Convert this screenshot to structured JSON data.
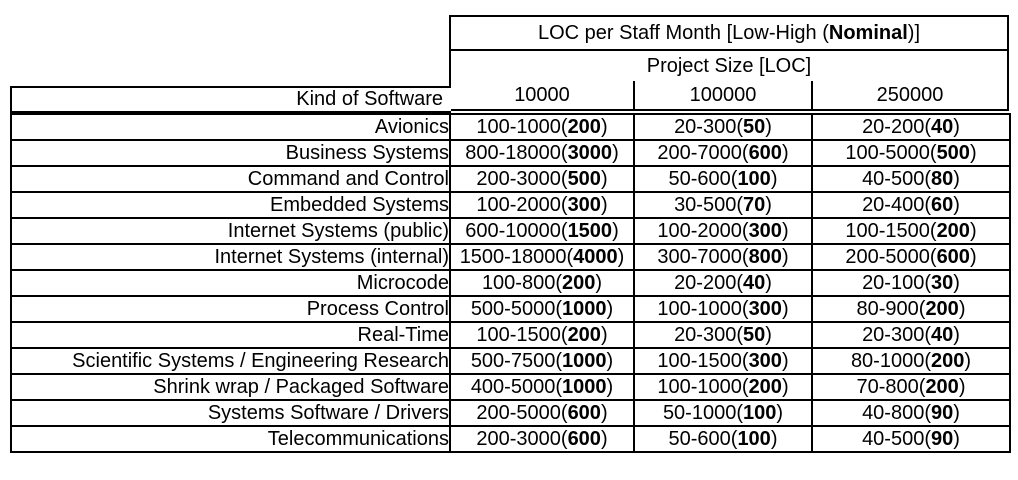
{
  "chart_data": {
    "type": "table",
    "title": "LOC per Staff Month [Low-High (Nominal)]",
    "header": {
      "title_prefix": "LOC per Staff Month [Low-High (",
      "title_bold": "Nominal",
      "title_suffix": ")]",
      "subtitle": "Project Size [LOC]",
      "row_header": "Kind of Software",
      "columns": [
        "10000",
        "100000",
        "250000"
      ]
    },
    "rows": [
      {
        "kind": "Avionics",
        "cells": [
          {
            "range": "100-1000",
            "nominal": "200"
          },
          {
            "range": "20-300",
            "nominal": "50"
          },
          {
            "range": "20-200",
            "nominal": "40"
          }
        ]
      },
      {
        "kind": "Business Systems",
        "cells": [
          {
            "range": "800-18000",
            "nominal": "3000"
          },
          {
            "range": "200-7000",
            "nominal": "600"
          },
          {
            "range": "100-5000",
            "nominal": "500"
          }
        ]
      },
      {
        "kind": "Command and Control",
        "cells": [
          {
            "range": "200-3000",
            "nominal": "500"
          },
          {
            "range": "50-600",
            "nominal": "100"
          },
          {
            "range": "40-500",
            "nominal": "80"
          }
        ]
      },
      {
        "kind": "Embedded Systems",
        "cells": [
          {
            "range": "100-2000",
            "nominal": "300"
          },
          {
            "range": "30-500",
            "nominal": "70"
          },
          {
            "range": "20-400",
            "nominal": "60"
          }
        ]
      },
      {
        "kind": "Internet Systems (public)",
        "cells": [
          {
            "range": "600-10000",
            "nominal": "1500"
          },
          {
            "range": "100-2000",
            "nominal": "300"
          },
          {
            "range": "100-1500",
            "nominal": "200"
          }
        ]
      },
      {
        "kind": "Internet Systems (internal)",
        "cells": [
          {
            "range": "1500-18000",
            "nominal": "4000"
          },
          {
            "range": "300-7000",
            "nominal": "800"
          },
          {
            "range": "200-5000",
            "nominal": "600"
          }
        ]
      },
      {
        "kind": "Microcode",
        "cells": [
          {
            "range": "100-800",
            "nominal": "200"
          },
          {
            "range": "20-200",
            "nominal": "40"
          },
          {
            "range": "20-100",
            "nominal": "30"
          }
        ]
      },
      {
        "kind": "Process Control",
        "cells": [
          {
            "range": "500-5000",
            "nominal": "1000"
          },
          {
            "range": "100-1000",
            "nominal": "300"
          },
          {
            "range": "80-900",
            "nominal": "200"
          }
        ]
      },
      {
        "kind": "Real-Time",
        "cells": [
          {
            "range": "100-1500",
            "nominal": "200"
          },
          {
            "range": "20-300",
            "nominal": "50"
          },
          {
            "range": "20-300",
            "nominal": "40"
          }
        ]
      },
      {
        "kind": "Scientific Systems / Engineering Research",
        "cells": [
          {
            "range": "500-7500",
            "nominal": "1000"
          },
          {
            "range": "100-1500",
            "nominal": "300"
          },
          {
            "range": "80-1000",
            "nominal": "200"
          }
        ]
      },
      {
        "kind": "Shrink wrap / Packaged Software",
        "cells": [
          {
            "range": "400-5000",
            "nominal": "1000"
          },
          {
            "range": "100-1000",
            "nominal": "200"
          },
          {
            "range": "70-800",
            "nominal": "200"
          }
        ]
      },
      {
        "kind": "Systems Software / Drivers",
        "cells": [
          {
            "range": "200-5000",
            "nominal": "600"
          },
          {
            "range": "50-1000",
            "nominal": "100"
          },
          {
            "range": "40-800",
            "nominal": "90"
          }
        ]
      },
      {
        "kind": "Telecommunications",
        "cells": [
          {
            "range": "200-3000",
            "nominal": "600"
          },
          {
            "range": "50-600",
            "nominal": "100"
          },
          {
            "range": "40-500",
            "nominal": "90"
          }
        ]
      }
    ]
  },
  "colors": {
    "background": "#ffffff",
    "text": "#000000",
    "border": "#000000"
  }
}
